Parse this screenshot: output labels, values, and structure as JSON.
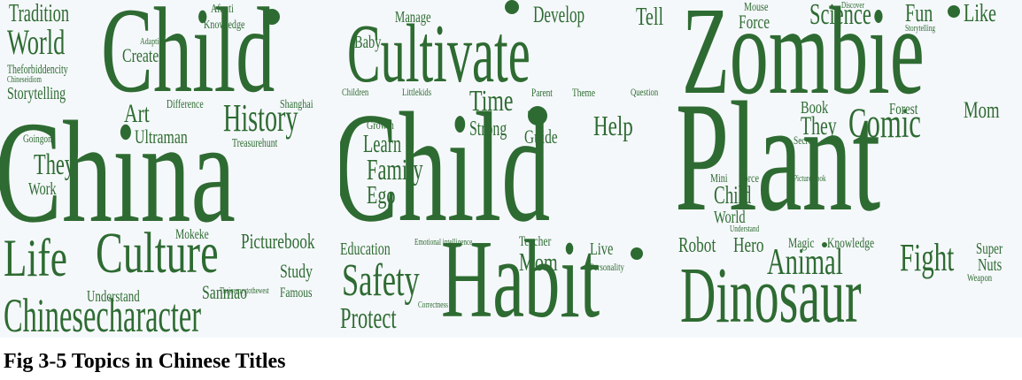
{
  "caption": "Fig 3-5 Topics in Chinese Titles",
  "colors": {
    "word": "#2e6b32",
    "background": "#f5f8fb"
  },
  "panels": [
    {
      "words": [
        "China",
        "Child",
        "Life",
        "Culture",
        "Chinesecharacter",
        "History",
        "World",
        "Tradition",
        "They",
        "Create",
        "Art",
        "Ultraman",
        "Storytelling",
        "Study",
        "Afanti",
        "Knowledge",
        "Adaption",
        "Theforbiddencity",
        "Chineseidiom",
        "Difference",
        "Shanghai",
        "Goingon",
        "Treasurehunt",
        "Work",
        "Mokeke",
        "Picturebook",
        "Understand",
        "Sanmao",
        "Thejourneytothewest",
        "Famous"
      ]
    },
    {
      "words": [
        "Child",
        "Cultivate",
        "Habit",
        "Safety",
        "Protect",
        "Family",
        "Ego",
        "Learn",
        "Growth",
        "Time",
        "Strong",
        "Guide",
        "Help",
        "Develop",
        "Tell",
        "Manage",
        "Baby",
        "Children",
        "Littlekids",
        "Parent",
        "Theme",
        "Question",
        "Education",
        "Emotional intelligence",
        "Teacher",
        "Live",
        "Mom",
        "Personality",
        "Correctness"
      ]
    },
    {
      "words": [
        "Plant",
        "Zombie",
        "Dinosaur",
        "Comic",
        "Animal",
        "Fight",
        "Science",
        "Fun",
        "Like",
        "Mouse",
        "Force",
        "Discover",
        "Storytelling",
        "Book",
        "They",
        "Forest",
        "Mom",
        "Secret",
        "Mini",
        "Force",
        "Child",
        "World",
        "Understand",
        "Picture book",
        "Robot",
        "Hero",
        "Magic",
        "Knowledge",
        "Super",
        "Nuts",
        "Weapon"
      ]
    }
  ]
}
